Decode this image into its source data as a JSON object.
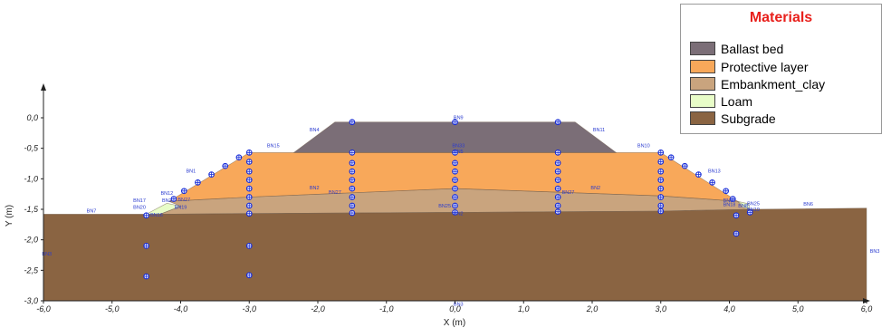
{
  "legend": {
    "title": "Materials",
    "items": [
      {
        "label": "Ballast bed",
        "color": "#7b6e77"
      },
      {
        "label": "Protective layer",
        "color": "#f8a85a"
      },
      {
        "label": "Embankment_clay",
        "color": "#c9a47e"
      },
      {
        "label": "Loam",
        "color": "#e8fdc8"
      },
      {
        "label": "Subgrade",
        "color": "#8a6442"
      }
    ]
  },
  "chart_data": {
    "type": "diagram",
    "xlabel": "X (m)",
    "ylabel": "Y (m)",
    "xlim": [
      -6.0,
      6.0
    ],
    "ylim": [
      -3.0,
      0.0
    ],
    "x_ticks": [
      "-6,0",
      "-5,0",
      "-4,0",
      "-3,0",
      "-2,0",
      "-1,0",
      "0,0",
      "1,0",
      "2,0",
      "3,0",
      "4,0",
      "5,0",
      "6,0"
    ],
    "y_ticks": [
      "0,0",
      "-0,5",
      "-1,0",
      "-1,5",
      "-2,0",
      "-2,5",
      "-3,0"
    ],
    "layers": [
      {
        "material": "Subgrade",
        "color": "#8a6442",
        "outline": [
          [
            -6.0,
            -1.58
          ],
          [
            -4.3,
            -1.58
          ],
          [
            -3.0,
            -1.57
          ],
          [
            0.0,
            -1.55
          ],
          [
            3.0,
            -1.53
          ],
          [
            4.3,
            -1.5
          ],
          [
            6.0,
            -1.48
          ],
          [
            6.0,
            -3.0
          ],
          [
            -6.0,
            -3.0
          ]
        ]
      },
      {
        "material": "Embankment_clay",
        "color": "#c9a47e",
        "outline": [
          [
            -4.17,
            -1.37
          ],
          [
            -3.0,
            -1.3
          ],
          [
            0.0,
            -1.16
          ],
          [
            3.0,
            -1.28
          ],
          [
            4.12,
            -1.37
          ],
          [
            4.3,
            -1.5
          ],
          [
            3.0,
            -1.53
          ],
          [
            0.0,
            -1.55
          ],
          [
            -3.0,
            -1.57
          ],
          [
            -4.3,
            -1.58
          ],
          [
            -4.0,
            -1.45
          ]
        ]
      },
      {
        "material": "Loam",
        "color": "#e8fdc8",
        "outline": [
          [
            -4.5,
            -1.58
          ],
          [
            -4.2,
            -1.4
          ],
          [
            -4.0,
            -1.45
          ],
          [
            -4.3,
            -1.58
          ]
        ]
      },
      {
        "material": "Loam",
        "color": "#e8fdc8",
        "outline": [
          [
            4.12,
            -1.37
          ],
          [
            4.28,
            -1.41
          ],
          [
            4.3,
            -1.5
          ],
          [
            4.2,
            -1.47
          ]
        ]
      },
      {
        "material": "Protective layer",
        "color": "#f8a85a",
        "outline": [
          [
            -4.17,
            -1.37
          ],
          [
            -3.0,
            -0.57
          ],
          [
            3.0,
            -0.57
          ],
          [
            4.12,
            -1.37
          ],
          [
            3.0,
            -1.28
          ],
          [
            0.0,
            -1.16
          ],
          [
            -3.0,
            -1.3
          ]
        ]
      },
      {
        "material": "Ballast bed",
        "color": "#7b6e77",
        "outline": [
          [
            -2.35,
            -0.57
          ],
          [
            -1.75,
            -0.07
          ],
          [
            1.75,
            -0.07
          ],
          [
            2.35,
            -0.57
          ]
        ]
      }
    ],
    "node_labels": [
      {
        "text": "BN9",
        "x": 0.05,
        "y": -0.02
      },
      {
        "text": "BN4",
        "x": -2.05,
        "y": -0.22
      },
      {
        "text": "BN11",
        "x": 2.1,
        "y": -0.22
      },
      {
        "text": "BN15",
        "x": -2.65,
        "y": -0.48
      },
      {
        "text": "BN10",
        "x": 2.75,
        "y": -0.48
      },
      {
        "text": "BN33",
        "x": 0.05,
        "y": -0.48
      },
      {
        "text": "BN5",
        "x": 0.05,
        "y": -0.58
      },
      {
        "text": "BN1",
        "x": -3.85,
        "y": -0.9
      },
      {
        "text": "BN13",
        "x": 3.78,
        "y": -0.9
      },
      {
        "text": "BN2",
        "x": -2.05,
        "y": -1.17
      },
      {
        "text": "BN27",
        "x": -1.75,
        "y": -1.25
      },
      {
        "text": "BN2",
        "x": 2.05,
        "y": -1.17
      },
      {
        "text": "BN27",
        "x": 1.65,
        "y": -1.25
      },
      {
        "text": "BN12",
        "x": -4.2,
        "y": -1.26
      },
      {
        "text": "BN17",
        "x": -4.6,
        "y": -1.38
      },
      {
        "text": "BN2",
        "x": -4.2,
        "y": -1.38
      },
      {
        "text": "BN27",
        "x": -3.95,
        "y": -1.37
      },
      {
        "text": "BN20",
        "x": -4.6,
        "y": -1.49
      },
      {
        "text": "BN19",
        "x": -4.0,
        "y": -1.49
      },
      {
        "text": "BN16",
        "x": -4.35,
        "y": -1.62
      },
      {
        "text": "BN7",
        "x": -5.3,
        "y": -1.55
      },
      {
        "text": "BN25",
        "x": -0.15,
        "y": -1.47
      },
      {
        "text": "BN2",
        "x": 0.05,
        "y": -1.6
      },
      {
        "text": "BN34",
        "x": 4.0,
        "y": -1.38
      },
      {
        "text": "BN18",
        "x": 4.0,
        "y": -1.45
      },
      {
        "text": "BN8",
        "x": 4.2,
        "y": -1.47
      },
      {
        "text": "BN25",
        "x": 4.35,
        "y": -1.43
      },
      {
        "text": "BN19",
        "x": 4.35,
        "y": -1.53
      },
      {
        "text": "BN6",
        "x": 5.15,
        "y": -1.44
      },
      {
        "text": "BN3",
        "x": -5.95,
        "y": -2.26
      },
      {
        "text": "BN3",
        "x": 6.12,
        "y": -2.21
      },
      {
        "text": "BN3",
        "x": 0.05,
        "y": -3.08
      }
    ],
    "measurement_points": [
      [
        -1.5,
        -0.07
      ],
      [
        0.0,
        -0.07
      ],
      [
        1.5,
        -0.07
      ],
      [
        -1.5,
        -0.57
      ],
      [
        0.0,
        -0.57
      ],
      [
        1.5,
        -0.57
      ],
      [
        -3.0,
        -0.57
      ],
      [
        3.0,
        -0.57
      ],
      [
        -1.5,
        -0.74
      ],
      [
        0.0,
        -0.74
      ],
      [
        1.5,
        -0.74
      ],
      [
        -1.5,
        -0.88
      ],
      [
        0.0,
        -0.88
      ],
      [
        1.5,
        -0.88
      ],
      [
        -1.5,
        -1.02
      ],
      [
        0.0,
        -1.02
      ],
      [
        1.5,
        -1.02
      ],
      [
        -1.5,
        -1.16
      ],
      [
        0.0,
        -1.16
      ],
      [
        1.5,
        -1.16
      ],
      [
        -1.5,
        -1.3
      ],
      [
        0.0,
        -1.3
      ],
      [
        1.5,
        -1.3
      ],
      [
        -1.5,
        -1.44
      ],
      [
        0.0,
        -1.44
      ],
      [
        1.5,
        -1.44
      ],
      [
        -1.5,
        -1.56
      ],
      [
        0.0,
        -1.55
      ],
      [
        1.5,
        -1.54
      ],
      [
        -3.0,
        -0.72
      ],
      [
        -3.0,
        -0.88
      ],
      [
        -3.0,
        -1.02
      ],
      [
        -3.0,
        -1.16
      ],
      [
        -3.0,
        -1.3
      ],
      [
        -3.0,
        -1.44
      ],
      [
        -3.0,
        -1.57
      ],
      [
        3.0,
        -0.72
      ],
      [
        3.0,
        -0.88
      ],
      [
        3.0,
        -1.02
      ],
      [
        3.0,
        -1.16
      ],
      [
        3.0,
        -1.3
      ],
      [
        3.0,
        -1.44
      ],
      [
        3.0,
        -1.53
      ],
      [
        -3.15,
        -0.65
      ],
      [
        -3.35,
        -0.79
      ],
      [
        -3.55,
        -0.93
      ],
      [
        -3.75,
        -1.06
      ],
      [
        -3.95,
        -1.2
      ],
      [
        -4.1,
        -1.33
      ],
      [
        3.15,
        -0.65
      ],
      [
        3.35,
        -0.79
      ],
      [
        3.55,
        -0.93
      ],
      [
        3.75,
        -1.06
      ],
      [
        3.95,
        -1.2
      ],
      [
        4.05,
        -1.33
      ],
      [
        -3.0,
        -2.1
      ],
      [
        -3.0,
        -2.58
      ],
      [
        -4.5,
        -1.6
      ],
      [
        -4.5,
        -2.1
      ],
      [
        -4.5,
        -2.6
      ],
      [
        4.1,
        -1.6
      ],
      [
        4.1,
        -1.9
      ],
      [
        4.3,
        -1.55
      ]
    ]
  }
}
